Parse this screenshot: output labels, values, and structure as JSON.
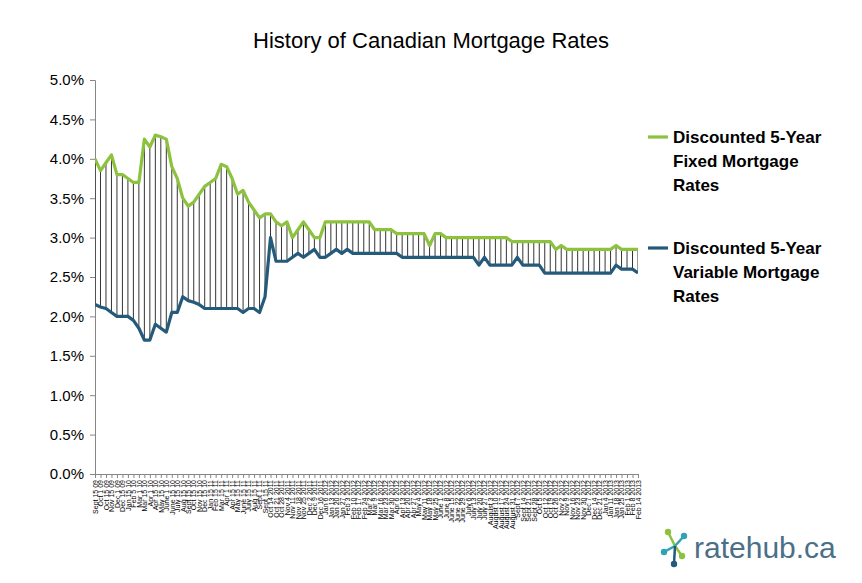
{
  "chart_data": {
    "type": "line",
    "title": "History of Canadian Mortgage Rates",
    "categories": [
      "Sept 15 09",
      "Oct 1 09",
      "Oct 15 09",
      "Nov 15 09",
      "Dec 1 09",
      "Dec 15 09",
      "Jan 15 10",
      "Feb 5 10",
      "Mar 1 10",
      "Mar 15 10",
      "Apr 1 10",
      "Apr 15 10",
      "May 15 10",
      "June 1 10",
      "June 15 10",
      "July 15 10",
      "Aug 15 10",
      "Sept 15 10",
      "Oct 15 10",
      "Nov 15 10",
      "Dec 15 10",
      "Jan 15 11",
      "Feb 15 11",
      "Mar 15 11",
      "Apr 1 11",
      "Apr 15 11",
      "May 15 11",
      "June 15 11",
      "July 15 11",
      "Aug 15 11",
      "Sept 1 11",
      "Sept 15 11",
      "Oct 14 2011",
      "Oct 21 2011",
      "Oct 28 2011",
      "Nov 4 2011",
      "Nov 11 2011",
      "Nov 18 2011",
      "Nov 25 2011",
      "Dec 2 2011",
      "Dec 9 2011",
      "Dec 16 2011",
      "Jan 6 2012",
      "Jan 13 2012",
      "Jan 20 2012",
      "Jan 27 2012",
      "Feb 3 2012",
      "Feb 10 2012",
      "Feb 17 2012",
      "Feb 24 2012",
      "Mar 2 2012",
      "Mar 9 2012",
      "Mar 16 2012",
      "Mar 23 2012",
      "Mar 30 2012",
      "Apr 6 2012",
      "Apr 13 2012",
      "Apr 20 2012",
      "Apr 27 2012",
      "May 4 2012",
      "May 11 2012",
      "May 18 2012",
      "May 25 2012",
      "June 1 2012",
      "June 8 2012",
      "June 15 2012",
      "June 22 2012",
      "June 29 2012",
      "July 6 2012",
      "July 13 2012",
      "July 20 2012",
      "July 27 2012",
      "August 3 2012",
      "August 10 2012",
      "August 17 2012",
      "August 24 2012",
      "August 31 2012",
      "Sept 7 2012",
      "Sept 14 2012",
      "Sept 21 2012",
      "Sept 28 2012",
      "Oct 5 2012",
      "Oct 12 2012",
      "Oct 19 2012",
      "Oct 26 2012",
      "Nov 2 2012",
      "Nov 9 2012",
      "Nov 16 2012",
      "Nov 23 2012",
      "Nov 30 2012",
      "Dec 7 2012",
      "Dec 14 2012",
      "Dec 21 2012",
      "Jan 4 2013",
      "Jan 11 2013",
      "Jan 18 2013",
      "Jan 25 2013",
      "Feb 1 2013",
      "Feb 8 2013",
      "Feb 14 2013"
    ],
    "series": [
      {
        "name": "Discounted 5-Year Fixed Mortgage Rates",
        "color": "#8dc23f",
        "values": [
          4.0,
          3.85,
          3.95,
          4.05,
          3.8,
          3.8,
          3.75,
          3.7,
          3.7,
          4.25,
          4.15,
          4.3,
          4.28,
          4.25,
          3.9,
          3.75,
          3.5,
          3.4,
          3.45,
          3.55,
          3.65,
          3.7,
          3.75,
          3.93,
          3.9,
          3.75,
          3.55,
          3.6,
          3.45,
          3.35,
          3.25,
          3.3,
          3.3,
          3.2,
          3.15,
          3.2,
          3.0,
          3.1,
          3.2,
          3.1,
          3.0,
          3.0,
          3.2,
          3.2,
          3.2,
          3.2,
          3.2,
          3.2,
          3.2,
          3.2,
          3.2,
          3.1,
          3.1,
          3.1,
          3.1,
          3.05,
          3.05,
          3.05,
          3.05,
          3.05,
          3.05,
          2.9,
          3.05,
          3.05,
          3.0,
          3.0,
          3.0,
          3.0,
          3.0,
          3.0,
          3.0,
          3.0,
          3.0,
          3.0,
          3.0,
          3.0,
          2.95,
          2.95,
          2.95,
          2.95,
          2.95,
          2.95,
          2.95,
          2.95,
          2.85,
          2.9,
          2.85,
          2.85,
          2.85,
          2.85,
          2.85,
          2.85,
          2.85,
          2.85,
          2.85,
          2.9,
          2.85,
          2.85,
          2.85,
          2.85
        ]
      },
      {
        "name": "Discounted 5-Year Variable Mortgage Rates",
        "color": "#245a7a",
        "values": [
          2.15,
          2.12,
          2.1,
          2.05,
          2.0,
          2.0,
          2.0,
          1.95,
          1.85,
          1.7,
          1.7,
          1.9,
          1.85,
          1.8,
          2.05,
          2.05,
          2.25,
          2.2,
          2.18,
          2.15,
          2.1,
          2.1,
          2.1,
          2.1,
          2.1,
          2.1,
          2.1,
          2.05,
          2.1,
          2.1,
          2.05,
          2.25,
          3.0,
          2.7,
          2.7,
          2.7,
          2.75,
          2.8,
          2.75,
          2.8,
          2.85,
          2.75,
          2.75,
          2.8,
          2.85,
          2.8,
          2.85,
          2.8,
          2.8,
          2.8,
          2.8,
          2.8,
          2.8,
          2.8,
          2.8,
          2.8,
          2.75,
          2.75,
          2.75,
          2.75,
          2.75,
          2.75,
          2.75,
          2.75,
          2.75,
          2.75,
          2.75,
          2.75,
          2.75,
          2.75,
          2.65,
          2.75,
          2.65,
          2.65,
          2.65,
          2.65,
          2.65,
          2.75,
          2.65,
          2.65,
          2.65,
          2.65,
          2.55,
          2.55,
          2.55,
          2.55,
          2.55,
          2.55,
          2.55,
          2.55,
          2.55,
          2.55,
          2.55,
          2.55,
          2.55,
          2.65,
          2.6,
          2.6,
          2.6,
          2.55
        ]
      }
    ],
    "ylim": [
      0,
      5
    ],
    "yticks": [
      {
        "value": 0,
        "label": "0.0%"
      },
      {
        "value": 0.5,
        "label": "0.5%"
      },
      {
        "value": 1,
        "label": "1.0%"
      },
      {
        "value": 1.5,
        "label": "1.5%"
      },
      {
        "value": 2,
        "label": "2.0%"
      },
      {
        "value": 2.5,
        "label": "2.5%"
      },
      {
        "value": 3,
        "label": "3.0%"
      },
      {
        "value": 3.5,
        "label": "3.5%"
      },
      {
        "value": 4,
        "label": "4.0%"
      },
      {
        "value": 4.5,
        "label": "4.5%"
      },
      {
        "value": 5,
        "label": "5.0%"
      }
    ],
    "grid": false,
    "legend": "right",
    "annotations": [
      "ratehub.ca"
    ]
  }
}
